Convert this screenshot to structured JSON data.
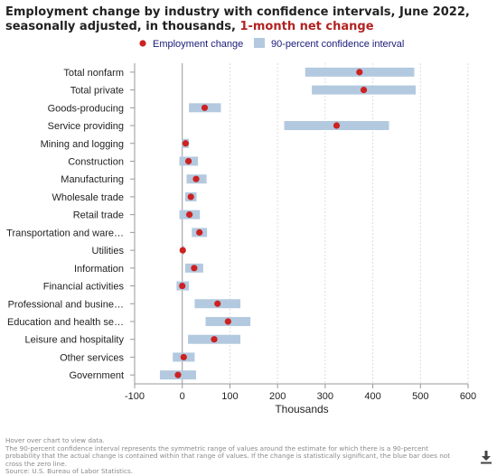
{
  "title": {
    "main": "Employment change by industry with confidence intervals, June 2022, seasonally adjusted, in thousands, ",
    "highlight": "1-month net change"
  },
  "legend": {
    "point_label": "Employment change",
    "interval_label": "90-percent confidence interval"
  },
  "footer": {
    "hint": "Hover over chart to view data.",
    "note": "The 90-percent confidence interval represents the symmetric range of values around the estimate for which there is a 90-percent probability that the actual change is contained within that range of values. If the change is statistically significant, the blue bar does not cross the zero line.",
    "source": "Source: U.S. Bureau of Labor Statistics."
  },
  "icons": {
    "download": "download-icon"
  },
  "colors": {
    "point": "#cc2222",
    "interval": "#b3c9df",
    "axis": "#999999",
    "grid": "#dddddd",
    "highlight": "#b22222"
  },
  "chart_data": {
    "type": "scatter",
    "orientation": "horizontal",
    "xlabel": "Thousands",
    "xlim": [
      -100,
      600
    ],
    "xticks": [
      -100,
      0,
      100,
      200,
      300,
      400,
      500,
      600
    ],
    "grid": true,
    "legend_position": "top",
    "categories": [
      "Total nonfarm",
      "Total private",
      "Goods-producing",
      "Service providing",
      "Mining and logging",
      "Construction",
      "Manufacturing",
      "Wholesale trade",
      "Retail trade",
      "Transportation and ware…",
      "Utilities",
      "Information",
      "Financial activities",
      "Professional and busine…",
      "Education and health se…",
      "Leisure and hospitality",
      "Other services",
      "Government"
    ],
    "series": [
      {
        "name": "Employment change",
        "values": [
          372,
          381,
          47,
          324,
          7,
          13,
          29,
          18,
          15,
          36,
          1,
          25,
          0,
          74,
          96,
          67,
          3,
          -9
        ]
      },
      {
        "name": "90-percent confidence interval",
        "low": [
          258,
          272,
          14,
          214,
          0,
          -6,
          9,
          6,
          -6,
          20,
          0,
          6,
          -12,
          26,
          49,
          12,
          -20,
          -47
        ],
        "high": [
          487,
          490,
          81,
          434,
          14,
          33,
          51,
          30,
          37,
          52,
          3,
          44,
          14,
          122,
          143,
          122,
          26,
          29
        ]
      }
    ]
  }
}
